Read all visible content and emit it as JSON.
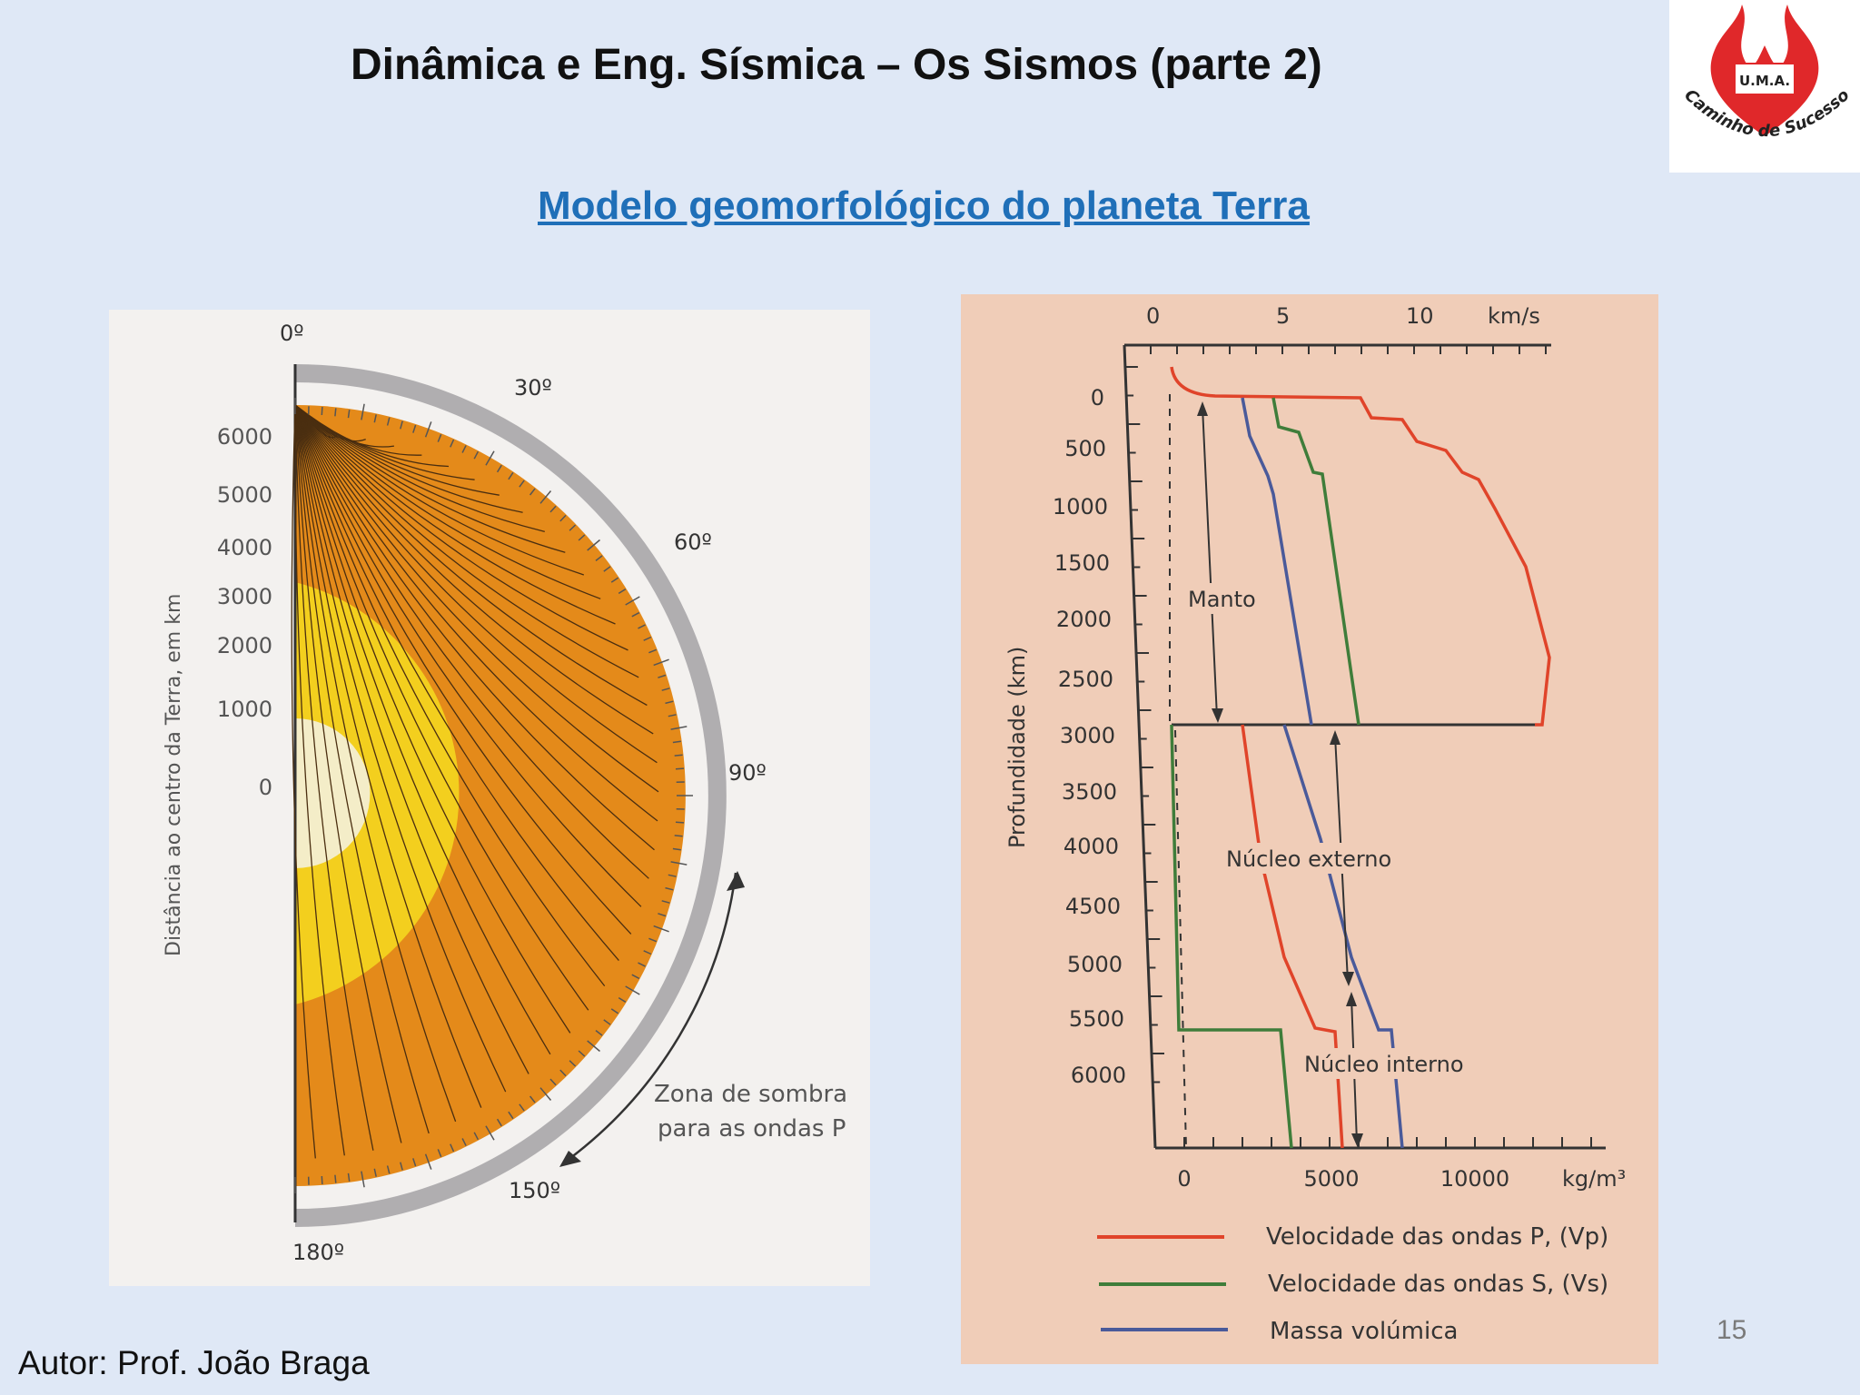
{
  "title": "Dinâmica e Eng. Sísmica – Os Sismos (parte 2)",
  "subtitle": "Modelo geomorfológico do planeta Terra",
  "author": "Autor: Prof. João Braga",
  "page_number": "15",
  "logo": {
    "top_text": "U.M.A.",
    "motto": "Caminho de Sucesso",
    "icon": "flame-heart-icon",
    "color": "#e0282a"
  },
  "earth_diagram": {
    "angle_labels": [
      "0º",
      "30º",
      "60º",
      "90º",
      "150º",
      "180º"
    ],
    "axis_label": "Distância ao centro da Terra, em km",
    "distance_ticks": [
      "6000",
      "5000",
      "4000",
      "3000",
      "2000",
      "1000",
      "0"
    ],
    "shadow_zone_label": [
      "Zona de sombra",
      "para as ondas P"
    ],
    "colors": {
      "mantle": "#e48a1a",
      "outer_core": "#f3cf1e",
      "inner_core": "#f4edc8",
      "rays": "#4a2e10"
    }
  },
  "profile_chart": {
    "top_axis_ticks": [
      "0",
      "5",
      "10"
    ],
    "top_axis_unit": "km/s",
    "bottom_axis_ticks": [
      "0",
      "5000",
      "10000"
    ],
    "bottom_axis_unit": "kg/m³",
    "y_label": "Profundidade (km)",
    "depth_ticks": [
      "0",
      "500",
      "1000",
      "1500",
      "2000",
      "2500",
      "3000",
      "3500",
      "4000",
      "4500",
      "5000",
      "5500",
      "6000"
    ],
    "region_labels": [
      "Manto",
      "Núcleo externo",
      "Núcleo interno"
    ],
    "legend": [
      {
        "label": "Velocidade das ondas P, (Vp)",
        "color": "#e0442a"
      },
      {
        "label": "Velocidade das ondas S, (Vs)",
        "color": "#3f7d3a"
      },
      {
        "label": "Massa volúmica",
        "color": "#4a5a9a"
      }
    ]
  }
}
